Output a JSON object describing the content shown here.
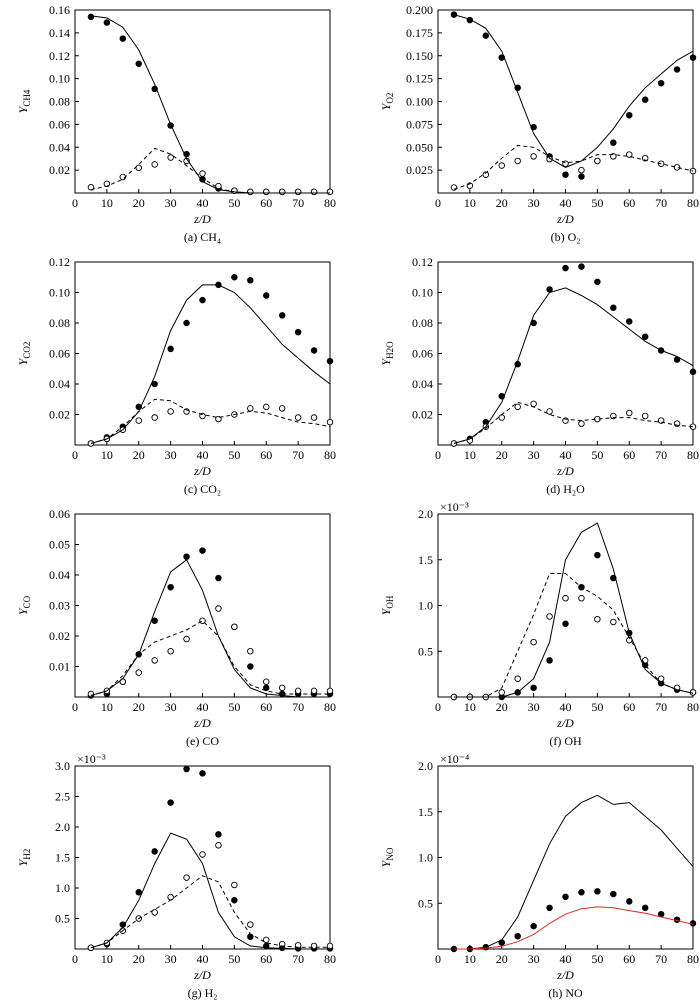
{
  "chart_data": [
    {
      "type": "line",
      "caption": "(a) CH₄",
      "x_label": "z/D",
      "y_label": "Y",
      "y_label_sub": "CH4",
      "x": [
        5,
        10,
        15,
        20,
        25,
        30,
        35,
        40,
        45,
        50,
        55,
        60,
        65,
        70,
        75,
        80
      ],
      "xlim": [
        0,
        80
      ],
      "xticks": [
        0,
        10,
        20,
        30,
        40,
        50,
        60,
        70,
        80
      ],
      "ylim": [
        0,
        0.16
      ],
      "yticks": [
        0.02,
        0.04,
        0.06,
        0.08,
        {
          "value": 0.1,
          "label": "0.10"
        },
        0.12,
        0.14,
        0.16
      ],
      "series": [
        {
          "style": "filled",
          "color": "#000000",
          "values": [
            0.154,
            0.149,
            0.135,
            0.113,
            0.091,
            0.059,
            0.034,
            0.012,
            0.004,
            0.002,
            0.001,
            0.001,
            0.001,
            0.001,
            0.001,
            0.001
          ]
        },
        {
          "style": "open",
          "color": "#000000",
          "values": [
            0.005,
            0.008,
            0.014,
            0.022,
            0.025,
            0.031,
            0.028,
            0.017,
            0.006,
            0.002,
            0.001,
            0.001,
            0.001,
            0.001,
            0.001,
            0.001
          ]
        },
        {
          "style": "solid",
          "color": "#000000",
          "values": [
            0.155,
            0.153,
            0.145,
            0.125,
            0.095,
            0.06,
            0.03,
            0.01,
            0.003,
            0.001,
            0,
            0,
            0,
            0,
            0,
            0
          ]
        },
        {
          "style": "dashed",
          "color": "#000000",
          "values": [
            0.003,
            0.006,
            0.012,
            0.025,
            0.039,
            0.034,
            0.024,
            0.013,
            0.004,
            0.001,
            0,
            0,
            0,
            0,
            0,
            0
          ]
        }
      ]
    },
    {
      "type": "line",
      "caption": "(b) O₂",
      "x_label": "z/D",
      "y_label": "Y",
      "y_label_sub": "O2",
      "x": [
        5,
        10,
        15,
        20,
        25,
        30,
        35,
        40,
        45,
        50,
        55,
        60,
        65,
        70,
        75,
        80
      ],
      "xlim": [
        0,
        80
      ],
      "xticks": [
        0,
        10,
        20,
        30,
        40,
        50,
        60,
        70,
        80
      ],
      "ylim": [
        0,
        0.2
      ],
      "yticks": [
        0.025,
        {
          "value": 0.05,
          "label": "0.050"
        },
        0.075,
        {
          "value": 0.1,
          "label": "0.100"
        },
        0.125,
        {
          "value": 0.15,
          "label": "0.150"
        },
        0.175,
        {
          "value": 0.2,
          "label": "0.200"
        }
      ],
      "series": [
        {
          "style": "filled",
          "color": "#000000",
          "values": [
            0.195,
            0.189,
            0.172,
            0.148,
            0.115,
            0.072,
            0.04,
            0.02,
            0.018,
            0.035,
            0.055,
            0.085,
            0.102,
            0.12,
            0.135,
            0.148
          ]
        },
        {
          "style": "open",
          "color": "#000000",
          "values": [
            0.006,
            0.008,
            0.02,
            0.03,
            0.035,
            0.04,
            0.037,
            0.032,
            0.025,
            0.035,
            0.04,
            0.042,
            0.038,
            0.032,
            0.028,
            0.024
          ]
        },
        {
          "style": "solid",
          "color": "#000000",
          "values": [
            0.195,
            0.19,
            0.18,
            0.155,
            0.11,
            0.065,
            0.038,
            0.028,
            0.035,
            0.05,
            0.07,
            0.095,
            0.115,
            0.13,
            0.145,
            0.155
          ]
        },
        {
          "style": "dashed",
          "color": "#000000",
          "values": [
            0.004,
            0.01,
            0.022,
            0.038,
            0.052,
            0.05,
            0.04,
            0.033,
            0.035,
            0.042,
            0.042,
            0.04,
            0.036,
            0.032,
            0.028,
            0.024
          ]
        }
      ]
    },
    {
      "type": "line",
      "caption": "(c) CO₂",
      "x_label": "z/D",
      "y_label": "Y",
      "y_label_sub": "CO2",
      "x": [
        5,
        10,
        15,
        20,
        25,
        30,
        35,
        40,
        45,
        50,
        55,
        60,
        65,
        70,
        75,
        80
      ],
      "xlim": [
        0,
        80
      ],
      "xticks": [
        0,
        10,
        20,
        30,
        40,
        50,
        60,
        70,
        80
      ],
      "ylim": [
        0,
        0.12
      ],
      "yticks": [
        0.02,
        0.04,
        0.06,
        0.08,
        {
          "value": 0.1,
          "label": "0.10"
        },
        0.12
      ],
      "series": [
        {
          "style": "filled",
          "color": "#000000",
          "values": [
            0.001,
            0.005,
            0.012,
            0.025,
            0.04,
            0.063,
            0.08,
            0.095,
            0.105,
            0.11,
            0.108,
            0.098,
            0.085,
            0.074,
            0.062,
            0.055
          ]
        },
        {
          "style": "open",
          "color": "#000000",
          "values": [
            0.001,
            0.004,
            0.01,
            0.016,
            0.018,
            0.022,
            0.022,
            0.019,
            0.017,
            0.02,
            0.024,
            0.025,
            0.024,
            0.018,
            0.018,
            0.015
          ]
        },
        {
          "style": "solid",
          "color": "#000000",
          "values": [
            0.001,
            0.004,
            0.01,
            0.022,
            0.045,
            0.075,
            0.095,
            0.105,
            0.105,
            0.1,
            0.09,
            0.078,
            0.066,
            0.057,
            0.048,
            0.04
          ]
        },
        {
          "style": "dashed",
          "color": "#000000",
          "values": [
            0.001,
            0.004,
            0.012,
            0.022,
            0.03,
            0.029,
            0.023,
            0.02,
            0.018,
            0.02,
            0.022,
            0.021,
            0.018,
            0.015,
            0.014,
            0.012
          ]
        }
      ]
    },
    {
      "type": "line",
      "caption": "(d) H₂O",
      "x_label": "z/D",
      "y_label": "Y",
      "y_label_sub": "H2O",
      "x": [
        5,
        10,
        15,
        20,
        25,
        30,
        35,
        40,
        45,
        50,
        55,
        60,
        65,
        70,
        75,
        80
      ],
      "xlim": [
        0,
        80
      ],
      "xticks": [
        0,
        10,
        20,
        30,
        40,
        50,
        60,
        70,
        80
      ],
      "ylim": [
        0,
        0.12
      ],
      "yticks": [
        0.02,
        0.04,
        0.06,
        0.08,
        {
          "value": 0.1,
          "label": "0.10"
        },
        0.12
      ],
      "series": [
        {
          "style": "filled",
          "color": "#000000",
          "values": [
            0.001,
            0.004,
            0.015,
            0.032,
            0.053,
            0.08,
            0.102,
            0.116,
            0.117,
            0.107,
            0.09,
            0.081,
            0.071,
            0.062,
            0.056,
            0.048
          ]
        },
        {
          "style": "open",
          "color": "#000000",
          "values": [
            0.001,
            0.003,
            0.012,
            0.018,
            0.025,
            0.027,
            0.022,
            0.016,
            0.014,
            0.017,
            0.019,
            0.021,
            0.019,
            0.016,
            0.014,
            0.012
          ]
        },
        {
          "style": "solid",
          "color": "#000000",
          "values": [
            0.001,
            0.004,
            0.012,
            0.028,
            0.055,
            0.085,
            0.1,
            0.103,
            0.098,
            0.092,
            0.084,
            0.076,
            0.068,
            0.062,
            0.058,
            0.052
          ]
        },
        {
          "style": "dashed",
          "color": "#000000",
          "values": [
            0.001,
            0.004,
            0.011,
            0.02,
            0.028,
            0.025,
            0.02,
            0.017,
            0.016,
            0.017,
            0.018,
            0.018,
            0.016,
            0.015,
            0.013,
            0.012
          ]
        }
      ]
    },
    {
      "type": "line",
      "caption": "(e) CO",
      "x_label": "z/D",
      "y_label": "Y",
      "y_label_sub": "CO",
      "x": [
        5,
        10,
        15,
        20,
        25,
        30,
        35,
        40,
        45,
        50,
        55,
        60,
        65,
        70,
        75,
        80
      ],
      "xlim": [
        0,
        80
      ],
      "xticks": [
        0,
        10,
        20,
        30,
        40,
        50,
        60,
        70,
        80
      ],
      "ylim": [
        0,
        0.06
      ],
      "yticks": [
        0.01,
        0.02,
        0.03,
        0.04,
        0.05,
        0.06
      ],
      "series": [
        {
          "style": "filled",
          "color": "#000000",
          "values": [
            0.0005,
            0.001,
            0.005,
            0.014,
            0.025,
            0.036,
            0.046,
            0.048,
            0.039,
            0.023,
            0.01,
            0.003,
            0.001,
            0.001,
            0.001,
            0.001
          ]
        },
        {
          "style": "open",
          "color": "#000000",
          "values": [
            0.001,
            0.002,
            0.005,
            0.008,
            0.012,
            0.015,
            0.019,
            0.025,
            0.029,
            0.023,
            0.015,
            0.005,
            0.003,
            0.002,
            0.002,
            0.002
          ]
        },
        {
          "style": "solid",
          "color": "#000000",
          "values": [
            0.0005,
            0.002,
            0.006,
            0.014,
            0.028,
            0.041,
            0.045,
            0.035,
            0.02,
            0.009,
            0.003,
            0.001,
            0.0005,
            0,
            0,
            0
          ]
        },
        {
          "style": "dashed",
          "color": "#000000",
          "values": [
            0.0005,
            0.002,
            0.007,
            0.014,
            0.018,
            0.02,
            0.022,
            0.025,
            0.02,
            0.01,
            0.004,
            0.002,
            0.001,
            0.001,
            0.001,
            0.001
          ]
        }
      ]
    },
    {
      "type": "line",
      "caption": "(f) OH",
      "x_label": "z/D",
      "y_label": "Y",
      "y_label_sub": "OH",
      "y_multiplier": "×10⁻³",
      "x": [
        5,
        10,
        15,
        20,
        25,
        30,
        35,
        40,
        45,
        50,
        55,
        60,
        65,
        70,
        75,
        80
      ],
      "xlim": [
        0,
        80
      ],
      "xticks": [
        0,
        10,
        20,
        30,
        40,
        50,
        60,
        70,
        80
      ],
      "ylim": [
        0,
        2
      ],
      "yticks": [
        0.5,
        {
          "value": 1,
          "label": "1.0"
        },
        1.5,
        {
          "value": 2,
          "label": "2.0"
        }
      ],
      "series": [
        {
          "style": "filled",
          "color": "#000000",
          "values": [
            0,
            0,
            0,
            0,
            0.05,
            0.1,
            0.4,
            0.8,
            1.2,
            1.55,
            1.3,
            0.7,
            0.35,
            0.15,
            0.08,
            0.05
          ]
        },
        {
          "style": "open",
          "color": "#000000",
          "values": [
            0,
            0,
            0,
            0.05,
            0.2,
            0.6,
            0.88,
            1.08,
            1.08,
            0.85,
            0.82,
            0.62,
            0.4,
            0.2,
            0.1,
            0.05
          ]
        },
        {
          "style": "solid",
          "color": "#000000",
          "values": [
            0,
            0,
            0,
            0,
            0.05,
            0.2,
            0.6,
            1.5,
            1.8,
            1.9,
            1.4,
            0.7,
            0.3,
            0.15,
            0.08,
            0.04
          ]
        },
        {
          "style": "dashed",
          "color": "#000000",
          "values": [
            0,
            0,
            0,
            0.1,
            0.5,
            0.9,
            1.35,
            1.35,
            1.2,
            1.1,
            0.95,
            0.65,
            0.35,
            0.15,
            0.08,
            0.04
          ]
        }
      ]
    },
    {
      "type": "line",
      "caption": "(g) H₂",
      "x_label": "z/D",
      "y_label": "Y",
      "y_label_sub": "H2",
      "y_multiplier": "×10⁻³",
      "x": [
        5,
        10,
        15,
        20,
        25,
        30,
        35,
        40,
        45,
        50,
        55,
        60,
        65,
        70,
        75,
        80
      ],
      "xlim": [
        0,
        80
      ],
      "xticks": [
        0,
        10,
        20,
        30,
        40,
        50,
        60,
        70,
        80
      ],
      "ylim": [
        0,
        3
      ],
      "yticks": [
        0.5,
        {
          "value": 1,
          "label": "1.0"
        },
        1.5,
        {
          "value": 2,
          "label": "2.0"
        },
        2.5,
        {
          "value": 3,
          "label": "3.0"
        }
      ],
      "series": [
        {
          "style": "filled",
          "color": "#000000",
          "values": [
            0.02,
            0.08,
            0.4,
            0.93,
            1.6,
            2.4,
            2.95,
            2.88,
            1.88,
            0.8,
            0.2,
            0.05,
            0.02,
            0.01,
            0.01,
            0.01
          ]
        },
        {
          "style": "open",
          "color": "#000000",
          "values": [
            0.02,
            0.1,
            0.3,
            0.5,
            0.6,
            0.85,
            1.17,
            1.55,
            1.7,
            1.05,
            0.4,
            0.15,
            0.08,
            0.06,
            0.05,
            0.05
          ]
        },
        {
          "style": "solid",
          "color": "#000000",
          "values": [
            0.02,
            0.1,
            0.35,
            0.8,
            1.4,
            1.9,
            1.8,
            1.4,
            0.6,
            0.2,
            0.05,
            0.02,
            0.01,
            0,
            0,
            0
          ]
        },
        {
          "style": "dashed",
          "color": "#000000",
          "values": [
            0.02,
            0.1,
            0.3,
            0.5,
            0.65,
            0.8,
            1,
            1.2,
            1.1,
            0.6,
            0.25,
            0.1,
            0.05,
            0.03,
            0.03,
            0.03
          ]
        }
      ]
    },
    {
      "type": "line",
      "caption": "(h) NO",
      "x_label": "z/D",
      "y_label": "Y",
      "y_label_sub": "NO",
      "y_multiplier": "×10⁻⁴",
      "x": [
        5,
        10,
        15,
        20,
        25,
        30,
        35,
        40,
        45,
        50,
        55,
        60,
        65,
        70,
        75,
        80
      ],
      "xlim": [
        0,
        80
      ],
      "xticks": [
        0,
        10,
        20,
        30,
        40,
        50,
        60,
        70,
        80
      ],
      "ylim": [
        0,
        2
      ],
      "yticks": [
        0.5,
        {
          "value": 1,
          "label": "1.0"
        },
        1.5,
        {
          "value": 2,
          "label": "2.0"
        }
      ],
      "series": [
        {
          "style": "filled",
          "color": "#000000",
          "values": [
            0,
            0,
            0.02,
            0.07,
            0.14,
            0.25,
            0.45,
            0.57,
            0.62,
            0.63,
            0.6,
            0.52,
            0.45,
            0.38,
            0.32,
            0.28
          ]
        },
        {
          "style": "solid",
          "color": "#000000",
          "values": [
            0,
            0,
            0.02,
            0.1,
            0.35,
            0.75,
            1.15,
            1.45,
            1.6,
            1.68,
            1.58,
            1.6,
            1.45,
            1.3,
            1.1,
            0.9
          ]
        },
        {
          "style": "solid",
          "color": "#e8281e",
          "values": [
            0,
            0,
            0.01,
            0.03,
            0.08,
            0.16,
            0.28,
            0.38,
            0.44,
            0.46,
            0.45,
            0.42,
            0.39,
            0.35,
            0.31,
            0.27
          ]
        }
      ]
    }
  ]
}
